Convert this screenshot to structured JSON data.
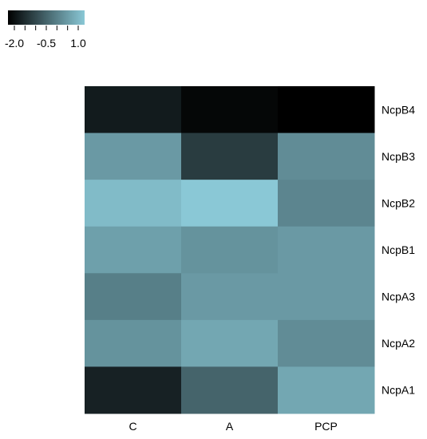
{
  "chart_data": {
    "type": "heatmap",
    "title": "",
    "xlabel": "",
    "ylabel": "",
    "columns": [
      "C",
      "A",
      "PCP"
    ],
    "rows": [
      "NcpB4",
      "NcpB3",
      "NcpB2",
      "NcpB1",
      "NcpA3",
      "NcpA2",
      "NcpA1"
    ],
    "values": [
      [
        -1.6,
        -1.9,
        -2.0
      ],
      [
        0.3,
        -1.1,
        0.1
      ],
      [
        0.8,
        1.0,
        0.0
      ],
      [
        0.4,
        0.2,
        0.3
      ],
      [
        -0.1,
        0.3,
        0.3
      ],
      [
        0.2,
        0.5,
        0.1
      ],
      [
        -1.5,
        -0.5,
        0.5
      ]
    ],
    "color_scale": {
      "min": -2.0,
      "max": 1.0,
      "low_color": "#000000",
      "high_color": "#8ac8d6",
      "ticks": [
        -2.0,
        -1.5,
        -1.0,
        -0.5,
        0.0,
        0.5,
        1.0
      ],
      "tick_labels": [
        "-2.0",
        "-0.5",
        "1.0"
      ],
      "legend_position": "top-left"
    },
    "grid": false
  }
}
